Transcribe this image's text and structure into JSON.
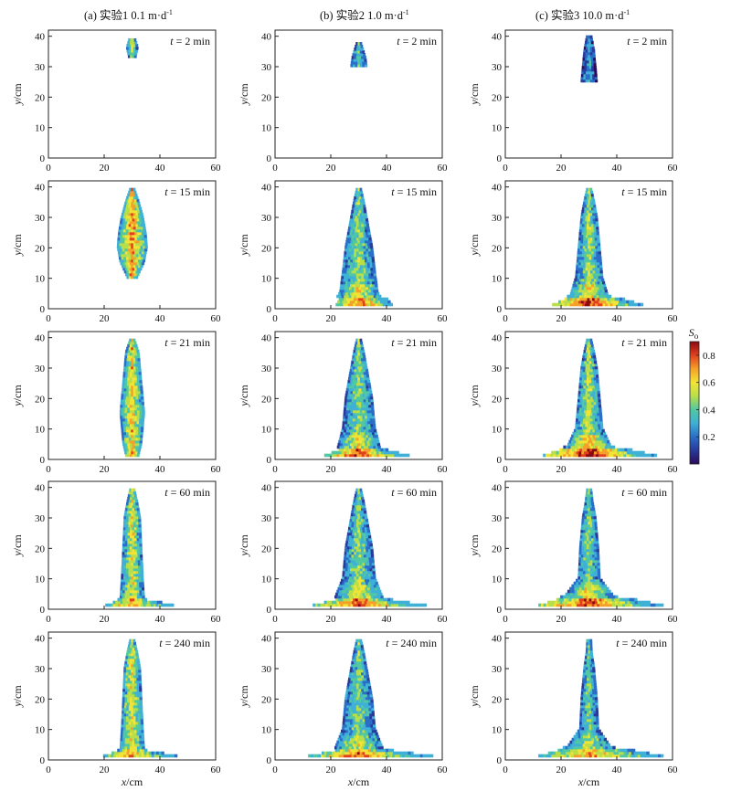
{
  "columns": [
    {
      "label": "(a) 实验1  0.1 m·d",
      "exp": "-1"
    },
    {
      "label": "(b) 实验2  1.0 m·d",
      "exp": "-1"
    },
    {
      "label": "(c) 实验3  10.0 m·d",
      "exp": "-1"
    }
  ],
  "rows": [
    {
      "time_label": "t = 2 min"
    },
    {
      "time_label": "t = 15 min"
    },
    {
      "time_label": "t = 21 min"
    },
    {
      "time_label": "t = 60 min"
    },
    {
      "time_label": "t = 240 min"
    }
  ],
  "axes": {
    "xlabel_var": "x",
    "xlabel_unit": "/cm",
    "ylabel_var": "y",
    "ylabel_unit": "/cm",
    "xticks": [
      "0",
      "20",
      "40",
      "60"
    ],
    "yticks": [
      "0",
      "10",
      "20",
      "30",
      "40"
    ]
  },
  "colorbar": {
    "label_main": "S",
    "label_sub": "o",
    "ticks": [
      "0.2",
      "0.4",
      "0.6",
      "0.8"
    ],
    "colors": [
      "#2a0a5a",
      "#283a9a",
      "#2a6ec8",
      "#3fb0d6",
      "#52c8a0",
      "#b8de4a",
      "#f2e436",
      "#f4a02a",
      "#e0401e",
      "#8a0a10"
    ]
  },
  "chart_data": {
    "type": "heatmap",
    "description_variable": "S_o",
    "xlim": [
      0,
      60
    ],
    "ylim": [
      0,
      42
    ],
    "zlim": [
      0,
      0.9
    ],
    "panels": [
      {
        "column": "(a) 实验1  0.1 m·d-1",
        "time": "t = 2 min",
        "plume": [
          [
            30,
            34
          ],
          [
            30,
            37
          ],
          [
            31,
            39
          ],
          [
            31,
            38
          ],
          [
            30,
            36
          ]
        ],
        "width_profile": [
          [
            33,
            1.5
          ],
          [
            36,
            2.2
          ],
          [
            39,
            1.2
          ]
        ],
        "peak_So": 0.6
      },
      {
        "column": "(a) 实验1  0.1 m·d-1",
        "time": "t = 15 min",
        "width_profile": [
          [
            10,
            2
          ],
          [
            15,
            4.5
          ],
          [
            20,
            5.5
          ],
          [
            25,
            5
          ],
          [
            30,
            4
          ],
          [
            35,
            2.5
          ],
          [
            39,
            1
          ]
        ],
        "peak_So": 0.85
      },
      {
        "column": "(a) 实验1  0.1 m·d-1",
        "time": "t = 21 min",
        "width_profile": [
          [
            1,
            2.5
          ],
          [
            5,
            3.5
          ],
          [
            10,
            4
          ],
          [
            15,
            4.5
          ],
          [
            20,
            4
          ],
          [
            25,
            3.5
          ],
          [
            30,
            3
          ],
          [
            35,
            2.5
          ],
          [
            39,
            1
          ]
        ],
        "peak_So": 0.75
      },
      {
        "column": "(a) 实验1  0.1 m·d-1",
        "time": "t = 60 min",
        "width_profile": [
          [
            1,
            12
          ],
          [
            3,
            4.5
          ],
          [
            10,
            4
          ],
          [
            20,
            3.5
          ],
          [
            30,
            3
          ],
          [
            35,
            2
          ],
          [
            39,
            1
          ]
        ],
        "peak_So": 0.7
      },
      {
        "column": "(a) 实验1  0.1 m·d-1",
        "time": "t = 240 min",
        "width_profile": [
          [
            1,
            13
          ],
          [
            3,
            4.5
          ],
          [
            10,
            4
          ],
          [
            20,
            3.5
          ],
          [
            30,
            3
          ],
          [
            35,
            2
          ],
          [
            39,
            1
          ]
        ],
        "peak_So": 0.7
      },
      {
        "column": "(b) 实验2  1.0 m·d-1",
        "time": "t = 2 min",
        "width_profile": [
          [
            30,
            3
          ],
          [
            33,
            2.5
          ],
          [
            36,
            1.5
          ],
          [
            38,
            0.8
          ]
        ],
        "peak_So": 0.7
      },
      {
        "column": "(b) 实验2  1.0 m·d-1",
        "time": "t = 15 min",
        "width_profile": [
          [
            1,
            10
          ],
          [
            5,
            7
          ],
          [
            12,
            6
          ],
          [
            20,
            5
          ],
          [
            30,
            3
          ],
          [
            35,
            2
          ],
          [
            39,
            1
          ]
        ],
        "peak_So": 0.8
      },
      {
        "column": "(b) 实验2  1.0 m·d-1",
        "time": "t = 21 min",
        "width_profile": [
          [
            1,
            15
          ],
          [
            3,
            8
          ],
          [
            10,
            6
          ],
          [
            20,
            5
          ],
          [
            30,
            3
          ],
          [
            35,
            2
          ],
          [
            39,
            1
          ]
        ],
        "peak_So": 0.8
      },
      {
        "column": "(b) 实验2  1.0 m·d-1",
        "time": "t = 60 min",
        "width_profile": [
          [
            1,
            20
          ],
          [
            3,
            9
          ],
          [
            10,
            6
          ],
          [
            20,
            5
          ],
          [
            30,
            3
          ],
          [
            35,
            2
          ],
          [
            39,
            1
          ]
        ],
        "peak_So": 0.8
      },
      {
        "column": "(b) 实验2  1.0 m·d-1",
        "time": "t = 240 min",
        "width_profile": [
          [
            1,
            22
          ],
          [
            3,
            9
          ],
          [
            10,
            6
          ],
          [
            20,
            5
          ],
          [
            30,
            3
          ],
          [
            35,
            2
          ],
          [
            39,
            1
          ]
        ],
        "peak_So": 0.75
      },
      {
        "column": "(c) 实验3  10.0 m·d-1",
        "time": "t = 2 min",
        "width_profile": [
          [
            25,
            3
          ],
          [
            30,
            2.5
          ],
          [
            35,
            2
          ],
          [
            40,
            1
          ]
        ],
        "peak_So": 0.45
      },
      {
        "column": "(c) 实验3  10.0 m·d-1",
        "time": "t = 15 min",
        "width_profile": [
          [
            1,
            16
          ],
          [
            4,
            7
          ],
          [
            10,
            5
          ],
          [
            20,
            4
          ],
          [
            30,
            3
          ],
          [
            35,
            2
          ],
          [
            39,
            1
          ]
        ],
        "peak_So": 0.85
      },
      {
        "column": "(c) 实验3  10.0 m·d-1",
        "time": "t = 21 min",
        "width_profile": [
          [
            1,
            20
          ],
          [
            4,
            8
          ],
          [
            10,
            5
          ],
          [
            20,
            4
          ],
          [
            30,
            3
          ],
          [
            35,
            2
          ],
          [
            39,
            1
          ]
        ],
        "peak_So": 0.9
      },
      {
        "column": "(c) 实验3  10.0 m·d-1",
        "time": "t = 60 min",
        "width_profile": [
          [
            1,
            22
          ],
          [
            4,
            9
          ],
          [
            10,
            4
          ],
          [
            20,
            3.5
          ],
          [
            30,
            2.5
          ],
          [
            35,
            1.5
          ],
          [
            39,
            1
          ]
        ],
        "peak_So": 0.8
      },
      {
        "column": "(c) 实验3  10.0 m·d-1",
        "time": "t = 240 min",
        "width_profile": [
          [
            1,
            22
          ],
          [
            4,
            8
          ],
          [
            10,
            3.5
          ],
          [
            20,
            3
          ],
          [
            30,
            2
          ],
          [
            35,
            1.2
          ],
          [
            39,
            1
          ]
        ],
        "peak_So": 0.7
      }
    ]
  }
}
